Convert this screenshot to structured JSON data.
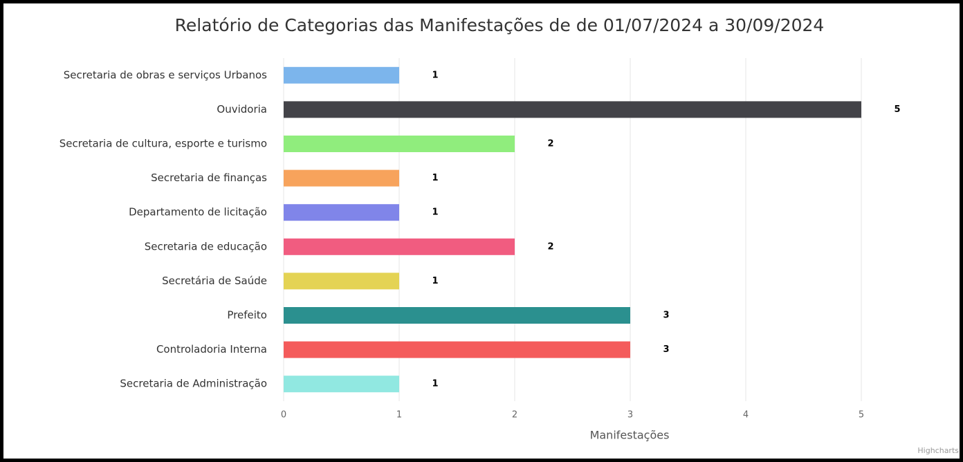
{
  "chart_data": {
    "type": "bar",
    "title": "Relatório de Categorias das Manifestações de de 01/07/2024 a 30/09/2024",
    "categories": [
      "Secretaria de obras e serviços Urbanos",
      "Ouvidoria",
      "Secretaria de cultura, esporte e turismo",
      "Secretaria de finanças",
      "Departamento de licitação",
      "Secretaria de educação",
      "Secretária de Saúde",
      "Prefeito",
      "Controladoria Interna",
      "Secretaria de Administração"
    ],
    "values": [
      1,
      5,
      2,
      1,
      1,
      2,
      1,
      3,
      3,
      1
    ],
    "colors": [
      "#7cb5ec",
      "#434348",
      "#90ed7d",
      "#f7a35c",
      "#8085e9",
      "#f15c80",
      "#e4d354",
      "#2b908f",
      "#f45b5b",
      "#91e8e1"
    ],
    "xlabel": "Manifestações",
    "xlim": [
      0,
      5
    ],
    "xticks": [
      0,
      1,
      2,
      3,
      4,
      5
    ],
    "grid": true,
    "credits": "Highcharts"
  }
}
